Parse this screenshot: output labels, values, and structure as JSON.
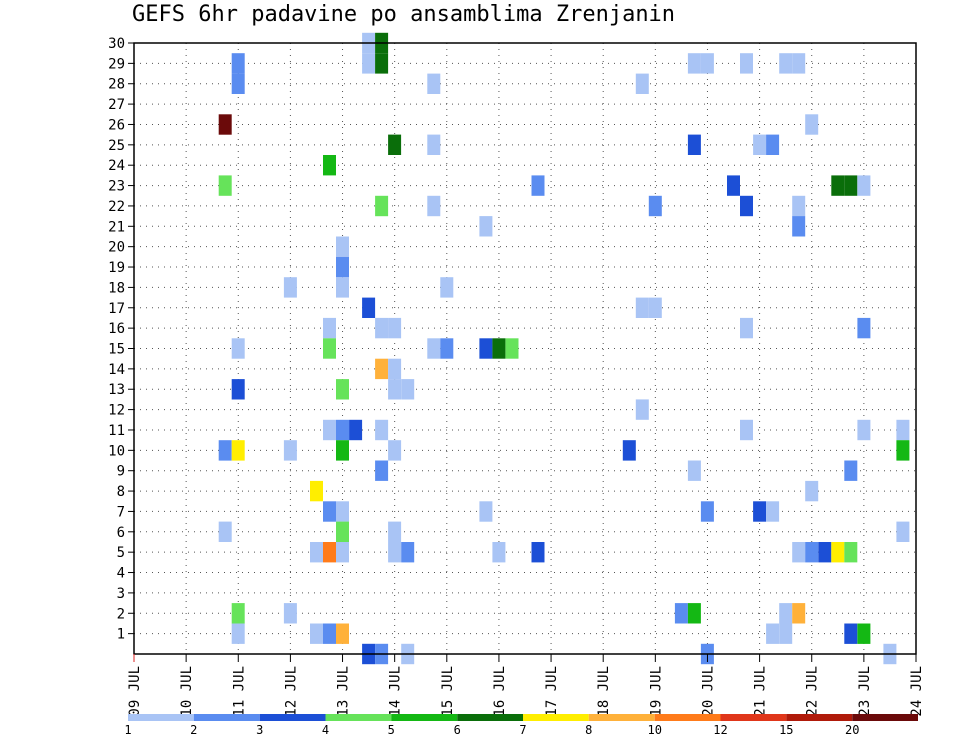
{
  "chart_data": {
    "type": "heatmap",
    "title": "GEFS 6hr padavine po ansamblima Zrenjanin",
    "xlabel": "",
    "ylabel": "",
    "x_tick_labels": [
      "09 JUL",
      "10 JUL",
      "11 JUL",
      "12 JUL",
      "13 JUL",
      "14 JUL",
      "15 JUL",
      "16 JUL",
      "17 JUL",
      "18 JUL",
      "19 JUL",
      "20 JUL",
      "21 JUL",
      "22 JUL",
      "23 JUL",
      "24 JUL"
    ],
    "x_range_days": [
      9,
      24
    ],
    "y_tick_labels": [
      "1",
      "2",
      "3",
      "4",
      "5",
      "6",
      "7",
      "8",
      "9",
      "10",
      "11",
      "12",
      "13",
      "14",
      "15",
      "16",
      "17",
      "18",
      "19",
      "20",
      "21",
      "22",
      "23",
      "24",
      "25",
      "26",
      "27",
      "28",
      "29",
      "30"
    ],
    "y_range_members": [
      0,
      30
    ],
    "grid": "dotted",
    "legend": {
      "placement": "bottom",
      "class_labels": [
        "1",
        "2",
        "3",
        "4",
        "5",
        "6",
        "7",
        "8",
        "10",
        "12",
        "15",
        "20"
      ],
      "colors": [
        "#a9c4f5",
        "#5a8cf0",
        "#1c4fd6",
        "#66e35a",
        "#14b814",
        "#0a6e0a",
        "#ffee00",
        "#ffb13a",
        "#ff7b1a",
        "#e0361a",
        "#b01a0a",
        "#6b0a0a"
      ]
    },
    "cells": [
      {
        "x": 11.0,
        "y": 29,
        "c": 2
      },
      {
        "x": 11.0,
        "y": 28,
        "c": 2
      },
      {
        "x": 13.5,
        "y": 30,
        "c": 1
      },
      {
        "x": 13.5,
        "y": 29,
        "c": 1
      },
      {
        "x": 13.75,
        "y": 30,
        "c": 6
      },
      {
        "x": 13.75,
        "y": 29,
        "c": 6
      },
      {
        "x": 19.75,
        "y": 29,
        "c": 1
      },
      {
        "x": 20.0,
        "y": 29,
        "c": 1
      },
      {
        "x": 20.75,
        "y": 29,
        "c": 1
      },
      {
        "x": 21.5,
        "y": 29,
        "c": 1
      },
      {
        "x": 21.75,
        "y": 29,
        "c": 1
      },
      {
        "x": 14.75,
        "y": 28,
        "c": 1
      },
      {
        "x": 18.75,
        "y": 28,
        "c": 1
      },
      {
        "x": 10.75,
        "y": 26,
        "c": 12
      },
      {
        "x": 22.0,
        "y": 26,
        "c": 1
      },
      {
        "x": 14.0,
        "y": 25,
        "c": 6
      },
      {
        "x": 14.75,
        "y": 25,
        "c": 1
      },
      {
        "x": 19.75,
        "y": 25,
        "c": 3
      },
      {
        "x": 21.0,
        "y": 25,
        "c": 1
      },
      {
        "x": 21.25,
        "y": 25,
        "c": 2
      },
      {
        "x": 12.75,
        "y": 24,
        "c": 5
      },
      {
        "x": 10.75,
        "y": 23,
        "c": 4
      },
      {
        "x": 16.75,
        "y": 23,
        "c": 2
      },
      {
        "x": 20.5,
        "y": 23,
        "c": 3
      },
      {
        "x": 22.5,
        "y": 23,
        "c": 6
      },
      {
        "x": 22.75,
        "y": 23,
        "c": 6
      },
      {
        "x": 23.0,
        "y": 23,
        "c": 1
      },
      {
        "x": 13.75,
        "y": 22,
        "c": 4
      },
      {
        "x": 14.75,
        "y": 22,
        "c": 1
      },
      {
        "x": 19.0,
        "y": 22,
        "c": 2
      },
      {
        "x": 20.75,
        "y": 22,
        "c": 3
      },
      {
        "x": 21.75,
        "y": 22,
        "c": 1
      },
      {
        "x": 15.75,
        "y": 21,
        "c": 1
      },
      {
        "x": 21.75,
        "y": 21,
        "c": 2
      },
      {
        "x": 13.0,
        "y": 20,
        "c": 1
      },
      {
        "x": 13.0,
        "y": 19,
        "c": 2
      },
      {
        "x": 12.0,
        "y": 18,
        "c": 1
      },
      {
        "x": 13.0,
        "y": 18,
        "c": 1
      },
      {
        "x": 15.0,
        "y": 18,
        "c": 1
      },
      {
        "x": 13.5,
        "y": 17,
        "c": 3
      },
      {
        "x": 18.75,
        "y": 17,
        "c": 1
      },
      {
        "x": 19.0,
        "y": 17,
        "c": 1
      },
      {
        "x": 12.75,
        "y": 16,
        "c": 1
      },
      {
        "x": 13.75,
        "y": 16,
        "c": 1
      },
      {
        "x": 14.0,
        "y": 16,
        "c": 1
      },
      {
        "x": 20.75,
        "y": 16,
        "c": 1
      },
      {
        "x": 23.0,
        "y": 16,
        "c": 2
      },
      {
        "x": 11.0,
        "y": 15,
        "c": 1
      },
      {
        "x": 12.75,
        "y": 15,
        "c": 4
      },
      {
        "x": 14.75,
        "y": 15,
        "c": 1
      },
      {
        "x": 15.0,
        "y": 15,
        "c": 2
      },
      {
        "x": 15.75,
        "y": 15,
        "c": 3
      },
      {
        "x": 16.0,
        "y": 15,
        "c": 6
      },
      {
        "x": 16.25,
        "y": 15,
        "c": 4
      },
      {
        "x": 13.75,
        "y": 14,
        "c": 8
      },
      {
        "x": 14.0,
        "y": 14,
        "c": 1
      },
      {
        "x": 11.0,
        "y": 13,
        "c": 3
      },
      {
        "x": 13.0,
        "y": 13,
        "c": 4
      },
      {
        "x": 14.0,
        "y": 13,
        "c": 1
      },
      {
        "x": 14.25,
        "y": 13,
        "c": 1
      },
      {
        "x": 18.75,
        "y": 12,
        "c": 1
      },
      {
        "x": 12.75,
        "y": 11,
        "c": 1
      },
      {
        "x": 13.0,
        "y": 11,
        "c": 2
      },
      {
        "x": 13.25,
        "y": 11,
        "c": 3
      },
      {
        "x": 13.75,
        "y": 11,
        "c": 1
      },
      {
        "x": 20.75,
        "y": 11,
        "c": 1
      },
      {
        "x": 23.0,
        "y": 11,
        "c": 1
      },
      {
        "x": 23.75,
        "y": 11,
        "c": 1
      },
      {
        "x": 10.75,
        "y": 10,
        "c": 2
      },
      {
        "x": 11.0,
        "y": 10,
        "c": 7
      },
      {
        "x": 12.0,
        "y": 10,
        "c": 1
      },
      {
        "x": 13.0,
        "y": 10,
        "c": 5
      },
      {
        "x": 14.0,
        "y": 10,
        "c": 1
      },
      {
        "x": 18.5,
        "y": 10,
        "c": 3
      },
      {
        "x": 23.75,
        "y": 10,
        "c": 5
      },
      {
        "x": 13.75,
        "y": 9,
        "c": 2
      },
      {
        "x": 19.75,
        "y": 9,
        "c": 1
      },
      {
        "x": 22.75,
        "y": 9,
        "c": 2
      },
      {
        "x": 12.5,
        "y": 8,
        "c": 7
      },
      {
        "x": 22.0,
        "y": 8,
        "c": 1
      },
      {
        "x": 12.75,
        "y": 7,
        "c": 2
      },
      {
        "x": 13.0,
        "y": 7,
        "c": 1
      },
      {
        "x": 15.75,
        "y": 7,
        "c": 1
      },
      {
        "x": 20.0,
        "y": 7,
        "c": 2
      },
      {
        "x": 21.0,
        "y": 7,
        "c": 3
      },
      {
        "x": 21.25,
        "y": 7,
        "c": 1
      },
      {
        "x": 10.75,
        "y": 6,
        "c": 1
      },
      {
        "x": 13.0,
        "y": 6,
        "c": 4
      },
      {
        "x": 14.0,
        "y": 6,
        "c": 1
      },
      {
        "x": 23.75,
        "y": 6,
        "c": 1
      },
      {
        "x": 12.5,
        "y": 5,
        "c": 1
      },
      {
        "x": 12.75,
        "y": 5,
        "c": 9
      },
      {
        "x": 13.0,
        "y": 5,
        "c": 1
      },
      {
        "x": 14.0,
        "y": 5,
        "c": 1
      },
      {
        "x": 14.25,
        "y": 5,
        "c": 2
      },
      {
        "x": 16.0,
        "y": 5,
        "c": 1
      },
      {
        "x": 16.75,
        "y": 5,
        "c": 3
      },
      {
        "x": 21.75,
        "y": 5,
        "c": 1
      },
      {
        "x": 22.0,
        "y": 5,
        "c": 2
      },
      {
        "x": 22.25,
        "y": 5,
        "c": 3
      },
      {
        "x": 22.5,
        "y": 5,
        "c": 7
      },
      {
        "x": 22.75,
        "y": 5,
        "c": 4
      },
      {
        "x": 11.0,
        "y": 2,
        "c": 4
      },
      {
        "x": 12.0,
        "y": 2,
        "c": 1
      },
      {
        "x": 19.5,
        "y": 2,
        "c": 2
      },
      {
        "x": 19.75,
        "y": 2,
        "c": 5
      },
      {
        "x": 21.5,
        "y": 2,
        "c": 1
      },
      {
        "x": 21.75,
        "y": 2,
        "c": 8
      },
      {
        "x": 11.0,
        "y": 1,
        "c": 1
      },
      {
        "x": 12.5,
        "y": 1,
        "c": 1
      },
      {
        "x": 12.75,
        "y": 1,
        "c": 2
      },
      {
        "x": 13.0,
        "y": 1,
        "c": 8
      },
      {
        "x": 21.25,
        "y": 1,
        "c": 1
      },
      {
        "x": 21.5,
        "y": 1,
        "c": 1
      },
      {
        "x": 22.75,
        "y": 1,
        "c": 3
      },
      {
        "x": 23.0,
        "y": 1,
        "c": 5
      },
      {
        "x": 13.5,
        "y": 0,
        "c": 3
      },
      {
        "x": 13.75,
        "y": 0,
        "c": 2
      },
      {
        "x": 14.25,
        "y": 0,
        "c": 1
      },
      {
        "x": 20.0,
        "y": 0,
        "c": 2
      },
      {
        "x": 23.5,
        "y": 0,
        "c": 1
      }
    ]
  }
}
